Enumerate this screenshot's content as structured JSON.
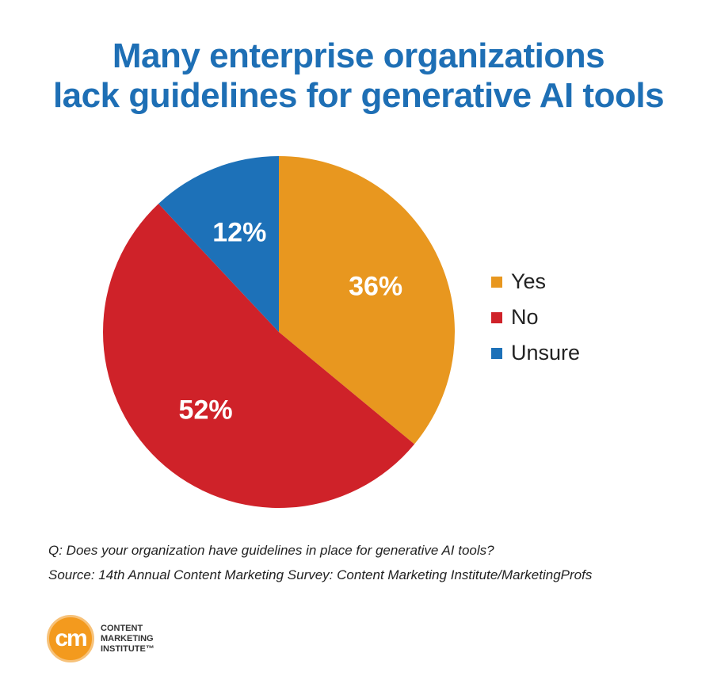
{
  "title": {
    "line1": "Many enterprise organizations",
    "line2": "lack guidelines for generative AI tools"
  },
  "chart_data": {
    "type": "pie",
    "title": "Many enterprise organizations lack guidelines for generative AI tools",
    "slices": [
      {
        "label": "Yes",
        "value": 36,
        "display": "36%",
        "color": "#e8971f"
      },
      {
        "label": "No",
        "value": 52,
        "display": "52%",
        "color": "#cf2229"
      },
      {
        "label": "Unsure",
        "value": 12,
        "display": "12%",
        "color": "#1d71b8"
      }
    ],
    "legend_position": "right"
  },
  "notes": {
    "question": "Q: Does your organization have guidelines in place for generative AI tools?",
    "source": "Source: 14th Annual Content Marketing Survey: Content Marketing Institute/MarketingProfs"
  },
  "logo": {
    "mark": "cm",
    "line1": "CONTENT",
    "line2": "MARKETING",
    "line3": "INSTITUTE™"
  }
}
